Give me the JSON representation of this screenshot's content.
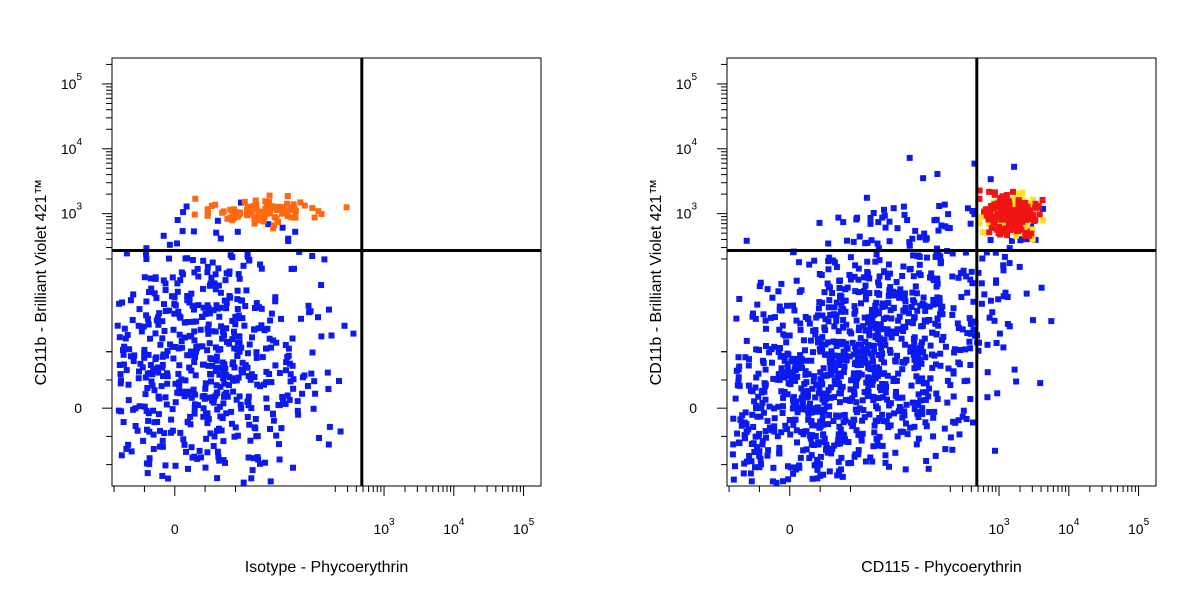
{
  "colors": {
    "low": "#0a1af0",
    "mid": "#ff6a10",
    "mid_alt": "#ffe21a",
    "high": "#f01414",
    "axes": "#000000",
    "background": "#ffffff"
  },
  "chart_data": [
    {
      "type": "scatter",
      "xlabel": "Isotype - Phycoerythrin",
      "ylabel": "CD11b - Brilliant Violet 421™",
      "x_scale": "biexponential",
      "y_scale": "biexponential",
      "x_tick_labels": [
        "0",
        "10^3",
        "10^4",
        "10^5"
      ],
      "y_tick_labels": [
        "0",
        "10^3",
        "10^4",
        "10^5"
      ],
      "quadrant_gate": {
        "x": 480,
        "y": 270
      },
      "density_coloring": true,
      "populations": [
        {
          "name": "blue",
          "shape": "blob",
          "x_range": [
            -150,
            900
          ],
          "y_range": [
            -150,
            5000
          ],
          "density_levels": [
            "low"
          ]
        },
        {
          "name": "orange",
          "shape": "blob",
          "x_range": [
            0,
            350
          ],
          "y_range": [
            600,
            2500
          ],
          "density_levels": [
            "mid"
          ]
        }
      ]
    },
    {
      "type": "scatter",
      "xlabel": "CD115 - Phycoerythrin",
      "ylabel": "CD11b - Brilliant Violet 421™",
      "x_scale": "biexponential",
      "y_scale": "biexponential",
      "x_tick_labels": [
        "0",
        "10^3",
        "10^4",
        "10^5"
      ],
      "y_tick_labels": [
        "0",
        "10^3",
        "10^4",
        "10^5"
      ],
      "quadrant_gate": {
        "x": 480,
        "y": 270
      },
      "density_coloring": true,
      "populations": [
        {
          "name": "blue",
          "shape": "band",
          "x_range": [
            -400,
            10000
          ],
          "y_range": [
            -300,
            5000
          ],
          "density_levels": [
            "low"
          ]
        },
        {
          "name": "yellow",
          "shape": "blob",
          "x_range": [
            400,
            4500
          ],
          "y_range": [
            400,
            3000
          ],
          "density_levels": [
            "mid_alt",
            "high"
          ]
        }
      ]
    }
  ]
}
